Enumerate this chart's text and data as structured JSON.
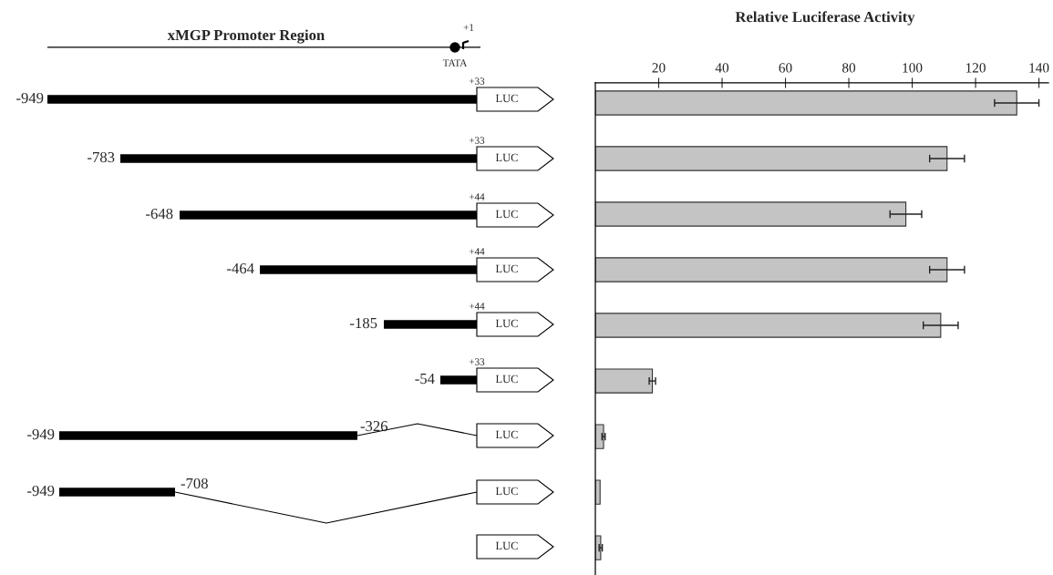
{
  "chart_data": {
    "type": "bar",
    "orientation": "horizontal",
    "title": "Relative Luciferase Activity",
    "categories": [
      null,
      null,
      null,
      null,
      null,
      null,
      null,
      null,
      null
    ],
    "values": [
      133,
      111,
      98,
      111,
      109,
      18,
      2.6,
      1.5,
      1.7
    ],
    "errors": [
      7,
      5.5,
      5,
      5.5,
      5.5,
      1,
      0.5,
      null,
      0.5
    ],
    "color": "#c4c4c4",
    "xlim": [
      0,
      143
    ],
    "xticks": [
      20,
      40,
      60,
      80,
      100,
      120,
      140
    ],
    "tick_labels": "x",
    "annotations": [
      "xMGP Promoter Region",
      "+1",
      "TATA",
      "-949",
      "+33",
      "LUC",
      "-783",
      "+33",
      "LUC",
      "-648",
      "+44",
      "LUC",
      "-464",
      "+44",
      "LUC",
      "-185",
      "+44",
      "LUC",
      "-54",
      "+33",
      "LUC",
      "-949",
      "-326",
      "LUC",
      "-949",
      "-708",
      "LUC",
      "LUC"
    ]
  }
}
